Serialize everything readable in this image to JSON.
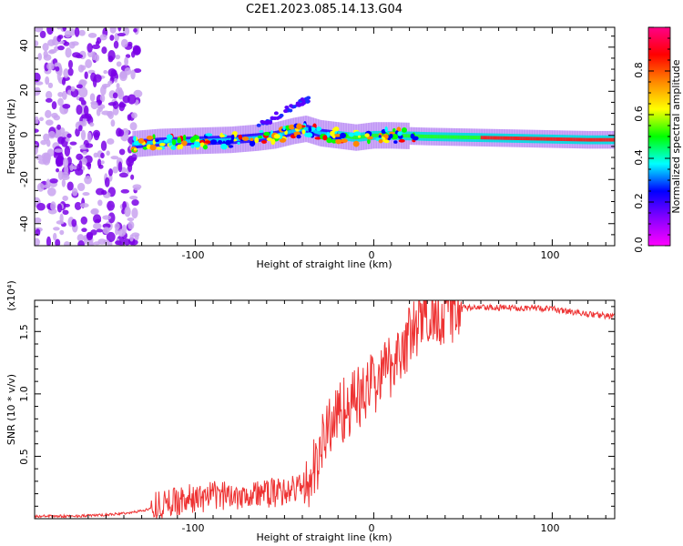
{
  "title": "C2E1.2023.085.14.13.G04",
  "chart_data": [
    {
      "type": "heatmap",
      "xlabel": "Height of straight line (km)",
      "ylabel": "Frequency (Hz)",
      "xlim": [
        -190,
        135
      ],
      "ylim": [
        -50,
        49
      ],
      "x_ticks": [
        "-100",
        "0",
        "100"
      ],
      "y_ticks": [
        "40",
        "20",
        "0",
        "-20",
        "-40"
      ],
      "grid": false,
      "colorbar": {
        "label": "Normalized spectral amplitude",
        "range": [
          0,
          1
        ],
        "ticks": [
          "0.0",
          "0.2",
          "0.4",
          "0.6",
          "0.8"
        ],
        "colormap": [
          "#ff00ff",
          "#8800ff",
          "#0000ff",
          "#00ffff",
          "#00ff00",
          "#ffff00",
          "#ff8800",
          "#ff0000",
          "#ff0088"
        ]
      },
      "ridge": {
        "x": [
          -135,
          -120,
          -100,
          -80,
          -65,
          -55,
          -45,
          -38,
          -30,
          -20,
          -10,
          0,
          10,
          30,
          60,
          90,
          120,
          135
        ],
        "freq": [
          -4,
          -3,
          -2.5,
          -2,
          -1,
          0,
          2,
          3,
          1,
          0,
          -1,
          0,
          0,
          -0.5,
          -1,
          -1.5,
          -2,
          -2
        ]
      }
    },
    {
      "type": "line",
      "xlabel": "Height of straight line (km)",
      "ylabel": "SNR (10 * v/v)",
      "y_scale_label": "(x10⁴)",
      "xlim": [
        -190,
        135
      ],
      "ylim": [
        0,
        1.75
      ],
      "x_ticks": [
        "-100",
        "0",
        "100"
      ],
      "y_ticks": [
        "1.5",
        "1.0",
        "0.5"
      ],
      "grid": false,
      "series": [
        {
          "color": "#ee3333",
          "x": [
            -190,
            -170,
            -150,
            -135,
            -125,
            -120,
            -115,
            -110,
            -100,
            -90,
            -80,
            -70,
            -60,
            -50,
            -42,
            -35,
            -30,
            -25,
            -20,
            -15,
            -10,
            -5,
            0,
            5,
            10,
            15,
            20,
            25,
            30,
            40,
            50,
            60,
            70,
            80,
            90,
            100,
            110,
            120,
            135
          ],
          "y": [
            0.02,
            0.02,
            0.03,
            0.05,
            0.08,
            0.12,
            0.12,
            0.15,
            0.16,
            0.18,
            0.19,
            0.2,
            0.2,
            0.22,
            0.25,
            0.3,
            0.55,
            0.75,
            0.85,
            0.9,
            0.95,
            1.0,
            1.1,
            1.15,
            1.25,
            1.35,
            1.45,
            1.55,
            1.62,
            1.67,
            1.69,
            1.69,
            1.69,
            1.69,
            1.69,
            1.68,
            1.66,
            1.64,
            1.62
          ]
        }
      ]
    }
  ]
}
